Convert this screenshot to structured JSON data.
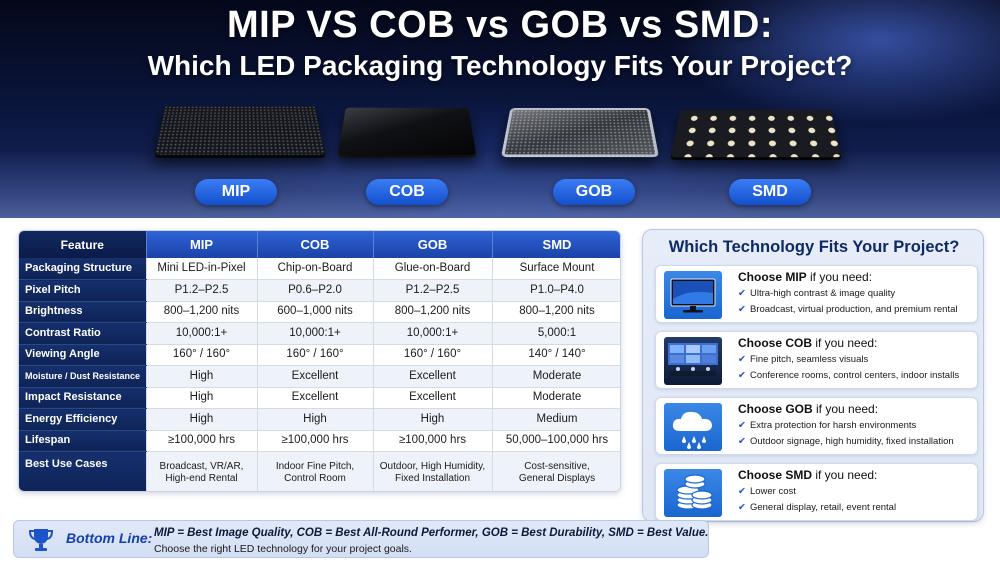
{
  "hero": {
    "title": "MIP VS COB vs GOB vs SMD:",
    "subtitle": "Which LED Packaging Technology Fits Your Project?",
    "labels": [
      "MIP",
      "COB",
      "GOB",
      "SMD"
    ]
  },
  "table": {
    "headers": [
      "Feature",
      "MIP",
      "COB",
      "GOB",
      "SMD"
    ],
    "rows": [
      {
        "feature": "Packaging Structure",
        "values": [
          "Mini LED-in-Pixel",
          "Chip-on-Board",
          "Glue-on-Board",
          "Surface Mount"
        ]
      },
      {
        "feature": "Pixel Pitch",
        "values": [
          "P1.2–P2.5",
          "P0.6–P2.0",
          "P1.2–P2.5",
          "P1.0–P4.0"
        ]
      },
      {
        "feature": "Brightness",
        "values": [
          "800–1,200 nits",
          "600–1,000 nits",
          "800–1,200 nits",
          "800–1,200 nits"
        ]
      },
      {
        "feature": "Contrast Ratio",
        "values": [
          "10,000:1+",
          "10,000:1+",
          "10,000:1+",
          "5,000:1"
        ]
      },
      {
        "feature": "Viewing Angle",
        "values": [
          "160° / 160°",
          "160° / 160°",
          "160° / 160°",
          "140° / 140°"
        ]
      },
      {
        "feature": "Moisture / Dust Resistance",
        "values": [
          "High",
          "Excellent",
          "Excellent",
          "Moderate"
        ]
      },
      {
        "feature": "Impact Resistance",
        "values": [
          "High",
          "Excellent",
          "Excellent",
          "Moderate"
        ]
      },
      {
        "feature": "Energy Efficiency",
        "values": [
          "High",
          "High",
          "High",
          "Medium"
        ]
      },
      {
        "feature": "Lifespan",
        "values": [
          "≥100,000 hrs",
          "≥100,000 hrs",
          "≥100,000 hrs",
          "50,000–100,000 hrs"
        ]
      }
    ],
    "use_cases": {
      "feature": "Best Use Cases",
      "values": [
        [
          "Broadcast, VR/AR,",
          "High-end Rental"
        ],
        [
          "Indoor Fine Pitch,",
          "Control Room"
        ],
        [
          "Outdoor, High Humidity,",
          "Fixed Installation"
        ],
        [
          "Cost-sensitive,",
          "General Displays"
        ]
      ]
    }
  },
  "panel": {
    "title": "Which Technology Fits Your Project?",
    "choices": [
      {
        "prefix": "Choose MIP",
        "suffix": " if you need:",
        "icon": "monitor-icon",
        "bullets": [
          "Ultra-high contrast & image quality",
          "Broadcast, virtual production, and premium rental"
        ]
      },
      {
        "prefix": "Choose COB",
        "suffix": " if you need:",
        "icon": "control-room-icon",
        "bullets": [
          "Fine pitch, seamless visuals",
          "Conference rooms, control centers, indoor installs"
        ]
      },
      {
        "prefix": "Choose GOB",
        "suffix": " if you need:",
        "icon": "rain-cloud-icon",
        "bullets": [
          "Extra protection for harsh environments",
          "Outdoor signage, high humidity, fixed installation"
        ]
      },
      {
        "prefix": "Choose SMD",
        "suffix": " if you need:",
        "icon": "coins-icon",
        "bullets": [
          "Lower cost",
          "General display, retail, event rental"
        ]
      }
    ]
  },
  "bottom": {
    "label": "Bottom Line:",
    "main": "MIP = Best Image Quality, COB = Best All-Round Performer, GOB = Best Durability, SMD = Best Value.",
    "sub": "Choose the right LED technology for your project goals."
  },
  "colors": {
    "accent": "#1b54c9",
    "navy": "#0e2355",
    "header_blue": "#2f63d6"
  }
}
